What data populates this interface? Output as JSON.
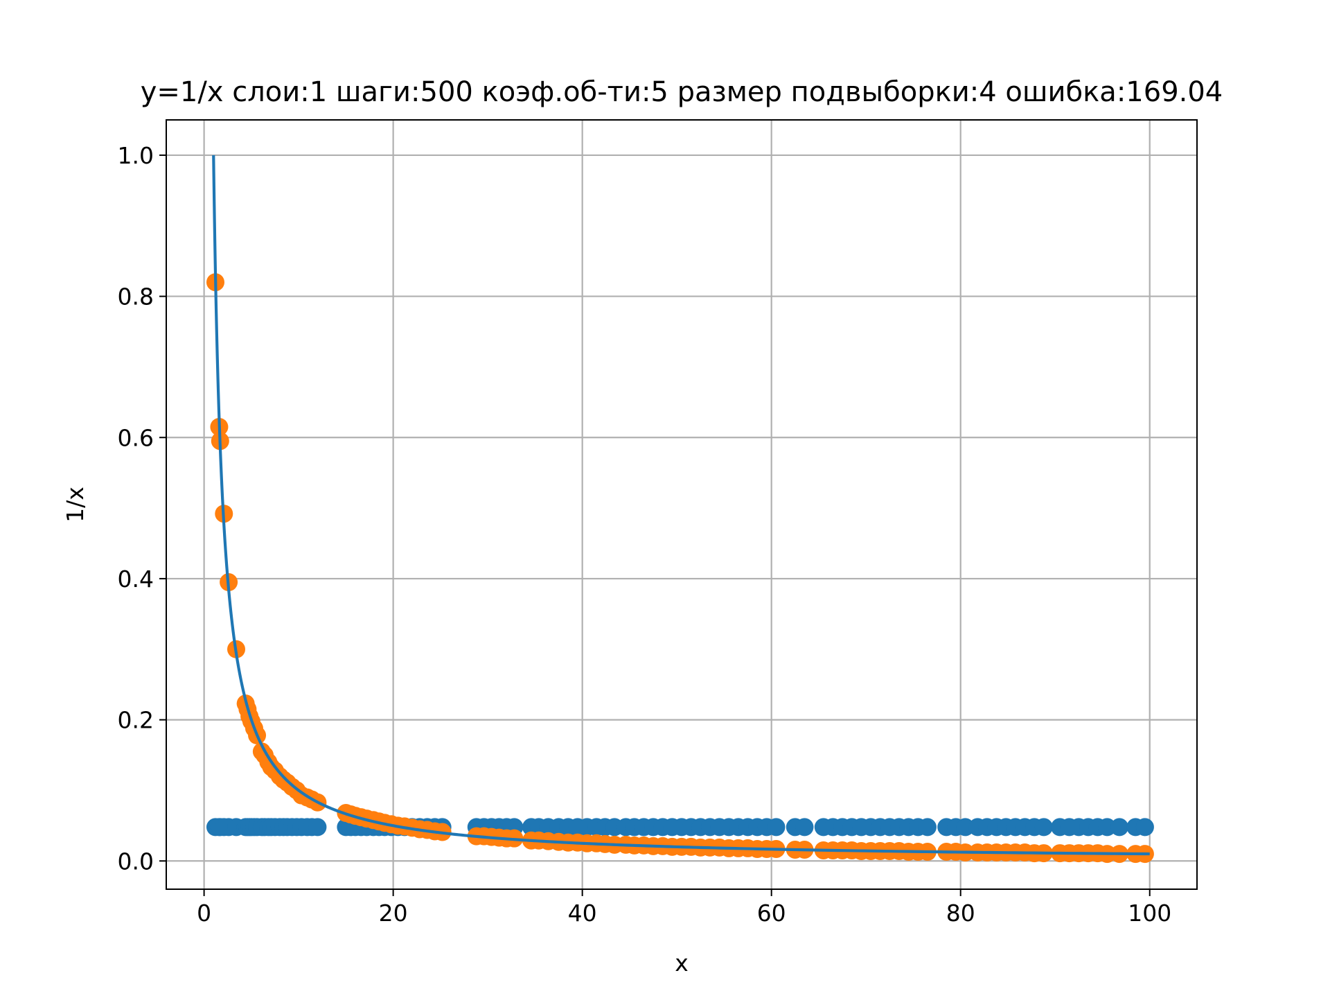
{
  "chart_data": {
    "type": "scatter",
    "title": "y=1/x слои:1 шаги:500 коэф.об-ти:5 размер подвыборки:4 ошибка:169.04",
    "xlabel": "x",
    "ylabel": "1/x",
    "xlim": [
      -4,
      105
    ],
    "ylim": [
      -0.04,
      1.05
    ],
    "xticks": [
      0,
      20,
      40,
      60,
      80,
      100
    ],
    "xtick_labels": [
      "0",
      "20",
      "40",
      "60",
      "80",
      "100"
    ],
    "yticks": [
      0.0,
      0.2,
      0.4,
      0.6,
      0.8,
      1.0
    ],
    "ytick_labels": [
      "0.0",
      "0.2",
      "0.4",
      "0.6",
      "0.8",
      "1.0"
    ],
    "grid": true,
    "colors": {
      "line": "#1f77b4",
      "predicted": "#1f77b4",
      "target": "#ff7f0e",
      "grid": "#b0b0b0"
    },
    "line": {
      "x_range": [
        1,
        100
      ],
      "function": "1/x"
    },
    "x": [
      1.2,
      1.6,
      1.7,
      2.1,
      2.6,
      3.4,
      4.4,
      4.6,
      4.8,
      5.0,
      5.3,
      5.6,
      6.1,
      6.4,
      6.8,
      7.1,
      7.5,
      8.0,
      8.4,
      8.8,
      9.3,
      9.8,
      10.3,
      10.9,
      11.4,
      12.0,
      15.0,
      15.5,
      16.0,
      16.6,
      17.2,
      17.9,
      18.5,
      19.1,
      19.8,
      20.5,
      21.2,
      22.0,
      22.8,
      23.6,
      24.4,
      25.2,
      28.8,
      29.6,
      30.4,
      31.2,
      32.0,
      32.8,
      34.6,
      35.4,
      36.4,
      37.5,
      38.5,
      39.5,
      40.5,
      41.5,
      42.4,
      43.4,
      44.6,
      45.5,
      46.5,
      47.5,
      48.5,
      49.5,
      50.5,
      51.5,
      52.5,
      53.5,
      54.5,
      55.5,
      56.5,
      57.5,
      58.5,
      59.5,
      60.5,
      62.5,
      63.5,
      65.5,
      66.5,
      67.5,
      68.5,
      69.5,
      70.5,
      71.5,
      72.5,
      73.5,
      74.5,
      75.5,
      76.5,
      78.5,
      79.5,
      80.5,
      81.8,
      82.8,
      83.8,
      84.8,
      85.8,
      86.8,
      87.8,
      88.8,
      90.5,
      91.5,
      92.5,
      93.5,
      94.5,
      95.5,
      96.8,
      98.5,
      99.5
    ],
    "series": [
      {
        "name": "",
        "values": [
          0.048,
          0.048,
          0.048,
          0.048,
          0.048,
          0.048,
          0.048,
          0.048,
          0.048,
          0.048,
          0.048,
          0.048,
          0.048,
          0.048,
          0.048,
          0.048,
          0.048,
          0.048,
          0.048,
          0.048,
          0.048,
          0.048,
          0.048,
          0.048,
          0.048,
          0.048,
          0.048,
          0.048,
          0.048,
          0.048,
          0.048,
          0.048,
          0.048,
          0.048,
          0.048,
          0.048,
          0.048,
          0.048,
          0.048,
          0.048,
          0.048,
          0.048,
          0.048,
          0.048,
          0.048,
          0.048,
          0.048,
          0.048,
          0.048,
          0.048,
          0.048,
          0.048,
          0.048,
          0.048,
          0.048,
          0.048,
          0.048,
          0.048,
          0.048,
          0.048,
          0.048,
          0.048,
          0.048,
          0.048,
          0.048,
          0.048,
          0.048,
          0.048,
          0.048,
          0.048,
          0.048,
          0.048,
          0.048,
          0.048,
          0.048,
          0.048,
          0.048,
          0.048,
          0.048,
          0.048,
          0.048,
          0.048,
          0.048,
          0.048,
          0.048,
          0.048,
          0.048,
          0.048,
          0.048,
          0.048,
          0.048,
          0.048,
          0.048,
          0.048,
          0.048,
          0.048,
          0.048,
          0.048,
          0.048,
          0.048,
          0.048,
          0.048,
          0.048,
          0.048,
          0.048,
          0.048,
          0.048,
          0.048,
          0.048
        ]
      },
      {
        "name": "",
        "values": [
          0.82,
          0.615,
          0.595,
          0.492,
          0.395,
          0.3,
          0.223,
          0.215,
          0.205,
          0.198,
          0.188,
          0.178,
          0.155,
          0.15,
          0.14,
          0.133,
          0.128,
          0.12,
          0.115,
          0.111,
          0.105,
          0.1,
          0.093,
          0.09,
          0.087,
          0.083,
          0.068,
          0.066,
          0.064,
          0.062,
          0.06,
          0.058,
          0.056,
          0.054,
          0.052,
          0.05,
          0.049,
          0.047,
          0.045,
          0.044,
          0.042,
          0.041,
          0.035,
          0.035,
          0.034,
          0.033,
          0.032,
          0.032,
          0.029,
          0.029,
          0.028,
          0.027,
          0.026,
          0.026,
          0.025,
          0.025,
          0.024,
          0.023,
          0.023,
          0.022,
          0.022,
          0.021,
          0.021,
          0.02,
          0.02,
          0.02,
          0.019,
          0.019,
          0.019,
          0.018,
          0.018,
          0.018,
          0.017,
          0.017,
          0.017,
          0.016,
          0.016,
          0.015,
          0.015,
          0.015,
          0.015,
          0.014,
          0.014,
          0.014,
          0.014,
          0.014,
          0.013,
          0.013,
          0.013,
          0.013,
          0.013,
          0.012,
          0.012,
          0.012,
          0.012,
          0.012,
          0.012,
          0.012,
          0.011,
          0.011,
          0.011,
          0.011,
          0.011,
          0.011,
          0.011,
          0.01,
          0.01,
          0.01,
          0.01
        ]
      }
    ]
  }
}
